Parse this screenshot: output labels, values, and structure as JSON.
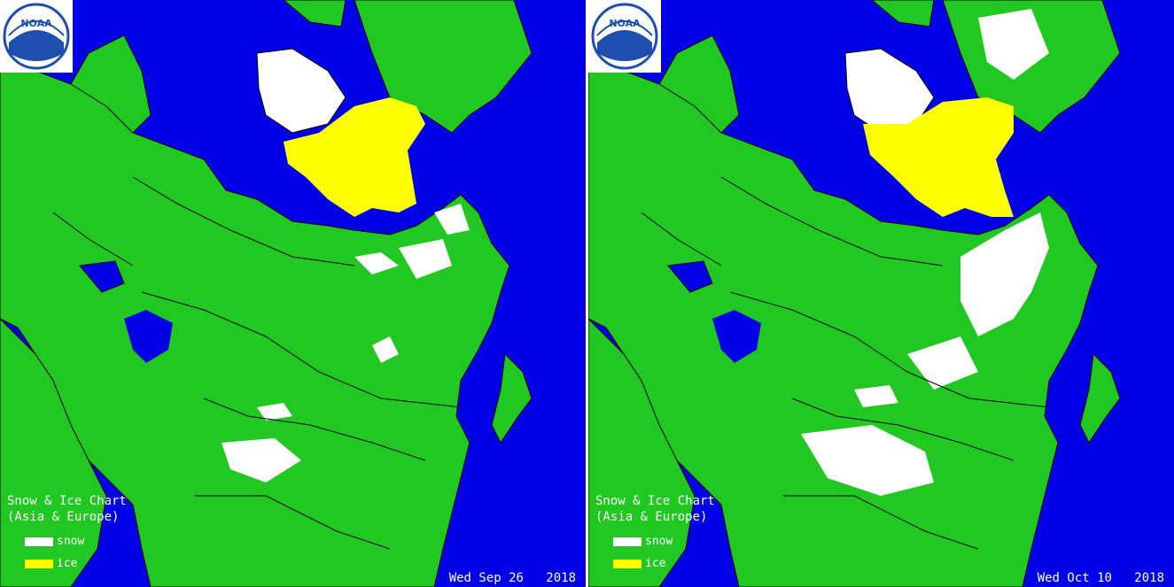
{
  "panels": [
    {
      "logo_text": "NOAA",
      "title_line1": "Snow & Ice Chart",
      "title_line2": "(Asia & Europe)",
      "legend": [
        {
          "label": "snow",
          "color": "#ffffff"
        },
        {
          "label": "ice",
          "color": "#ffff00"
        }
      ],
      "date": "Wed Sep 26   2018"
    },
    {
      "logo_text": "NOAA",
      "title_line1": "Snow & Ice Chart",
      "title_line2": "(Asia & Europe)",
      "legend": [
        {
          "label": "snow",
          "color": "#ffffff"
        },
        {
          "label": "ice",
          "color": "#ffff00"
        }
      ],
      "date": "Wed Oct 10   2018"
    }
  ],
  "colors": {
    "water": "#0000e6",
    "land": "#22c822",
    "snow": "#ffffff",
    "ice": "#ffff00",
    "border": "#000000"
  }
}
